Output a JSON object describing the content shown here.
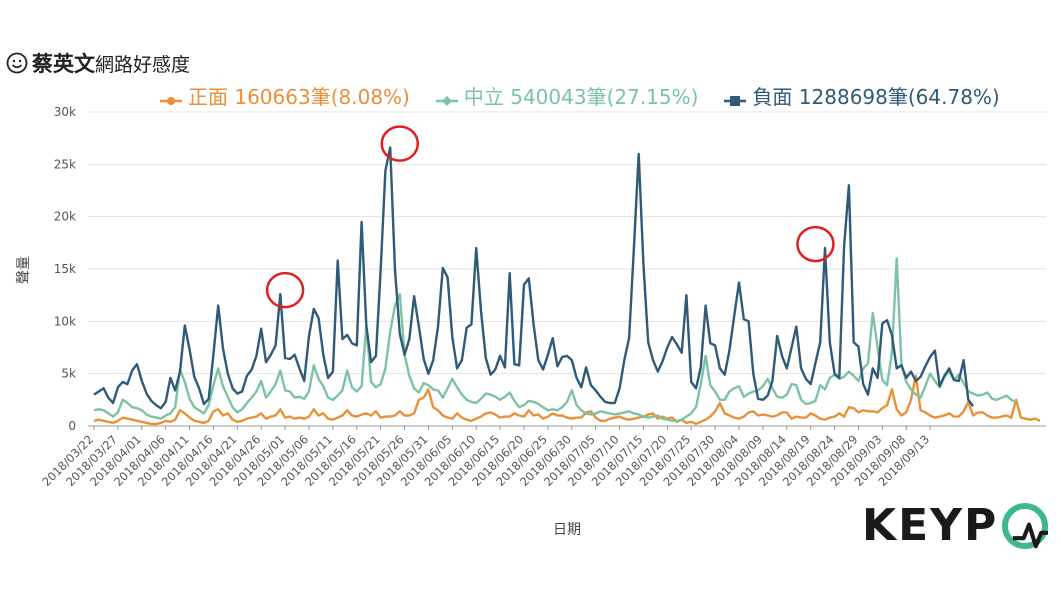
{
  "title": {
    "name": "蔡英文",
    "rest": "網路好感度"
  },
  "legend": [
    {
      "label": "正面 160663筆(8.08%)",
      "color": "#e8913a"
    },
    {
      "label": "中立 540043筆(27.15%)",
      "color": "#7cc3a3"
    },
    {
      "label": "負面 1288698筆(64.78%)",
      "color": "#2f5a78"
    }
  ],
  "logo": {
    "text": "KEYP"
  },
  "chart_data": {
    "type": "line",
    "xlabel": "日期",
    "ylabel": "聲量",
    "ylim": [
      0,
      30000
    ],
    "yticks": [
      "0",
      "5k",
      "10k",
      "15k",
      "20k",
      "25k",
      "30k"
    ],
    "x_start": "2018-03-22",
    "x_end": "2018-09-17",
    "xtick_labels": [
      "2018/03/22",
      "2018/03/27",
      "2018/04/01",
      "2018/04/06",
      "2018/04/11",
      "2018/04/16",
      "2018/04/21",
      "2018/04/26",
      "2018/05/01",
      "2018/05/06",
      "2018/05/11",
      "2018/05/16",
      "2018/05/21",
      "2018/05/26",
      "2018/05/31",
      "2018/06/05",
      "2018/06/10",
      "2018/06/15",
      "2018/06/20",
      "2018/06/25",
      "2018/06/30",
      "2018/07/05",
      "2018/07/10",
      "2018/07/15",
      "2018/07/20",
      "2018/07/25",
      "2018/07/30",
      "2018/08/04",
      "2018/08/09",
      "2018/08/14",
      "2018/08/19",
      "2018/08/24",
      "2018/08/29",
      "2018/09/03",
      "2018/09/08",
      "2018/09/13"
    ],
    "grid": true,
    "legend_position": "top",
    "series": [
      {
        "name": "正面",
        "color": "#e8913a",
        "values": [
          500,
          600,
          500,
          400,
          300,
          500,
          800,
          700,
          600,
          500,
          400,
          300,
          200,
          200,
          300,
          500,
          400,
          600,
          1500,
          1200,
          800,
          500,
          400,
          300,
          500,
          1400,
          1600,
          1000,
          1200,
          600,
          400,
          500,
          700,
          800,
          900,
          1200,
          700,
          900,
          1000,
          1600,
          800,
          900,
          700,
          800,
          700,
          900,
          1600,
          1000,
          1200,
          700,
          600,
          800,
          1000,
          1500,
          1000,
          900,
          1100,
          1200,
          1000,
          1400,
          800,
          900,
          900,
          1000,
          1400,
          1000,
          1000,
          1200,
          2500,
          2700,
          3500,
          1800,
          1500,
          1000,
          800,
          700,
          1200,
          800,
          600,
          500,
          700,
          900,
          1200,
          1300,
          1100,
          800,
          900,
          900,
          1200,
          1000,
          900,
          1500,
          1000,
          1100,
          700,
          900,
          1200,
          1000,
          1000,
          800,
          700,
          800,
          800,
          1300,
          1400,
          800,
          500,
          500,
          700,
          800,
          900,
          700,
          600,
          700,
          800,
          900,
          1100,
          1200,
          700,
          900,
          700,
          800,
          400,
          600,
          300,
          400,
          200,
          400,
          600,
          900,
          1400,
          2200,
          1200,
          1000,
          800,
          700,
          900,
          1300,
          1400,
          1000,
          1100,
          1000,
          900,
          1000,
          1300,
          1300,
          700,
          900,
          800,
          800,
          1200,
          1000,
          700,
          600,
          800,
          900,
          1200,
          900,
          1800,
          1700,
          1300,
          1500,
          1400,
          1400,
          1300,
          1700,
          2000,
          3500,
          1600,
          1000,
          1300,
          2500,
          4800,
          1500,
          1300,
          1000,
          800,
          900,
          1000,
          1200,
          900,
          900,
          1400,
          2300,
          1000,
          1300,
          1300,
          1000,
          800,
          800,
          900,
          1000,
          800,
          2500,
          800,
          700,
          600,
          700,
          500
        ]
      },
      {
        "name": "中立",
        "color": "#7cc3a3",
        "values": [
          1500,
          1600,
          1500,
          1200,
          900,
          1300,
          2500,
          2200,
          1800,
          1700,
          1500,
          1100,
          900,
          800,
          700,
          1000,
          1200,
          1800,
          5400,
          4200,
          2600,
          1800,
          1500,
          1200,
          2000,
          3900,
          5500,
          3800,
          2800,
          1800,
          1300,
          1600,
          2200,
          2700,
          3300,
          4300,
          2700,
          3300,
          4000,
          5300,
          3400,
          3300,
          2700,
          2800,
          2600,
          3300,
          5800,
          4500,
          3800,
          2700,
          2500,
          2900,
          3400,
          5300,
          3700,
          3300,
          3800,
          9600,
          4200,
          3700,
          4000,
          5500,
          9000,
          11500,
          12600,
          6800,
          4800,
          3600,
          3200,
          4100,
          3900,
          3500,
          3400,
          2700,
          3600,
          4500,
          3700,
          3000,
          2500,
          2300,
          2200,
          2600,
          3100,
          3000,
          2800,
          2500,
          2800,
          3200,
          2400,
          1800,
          2000,
          2400,
          2300,
          2100,
          1800,
          1500,
          1600,
          1500,
          1800,
          2300,
          3400,
          2000,
          1500,
          1200,
          1100,
          1200,
          1400,
          1300,
          1200,
          1100,
          1200,
          1300,
          1400,
          1200,
          1100,
          900,
          800,
          900,
          1000,
          700,
          600,
          500,
          500,
          600,
          900,
          1200,
          1800,
          4000,
          6700,
          3900,
          3300,
          2500,
          2500,
          3300,
          3600,
          3800,
          2800,
          3100,
          3300,
          3400,
          3800,
          4500,
          3600,
          2800,
          2700,
          3000,
          4000,
          3900,
          2500,
          2100,
          2200,
          2400,
          3900,
          3500,
          4600,
          4900,
          4500,
          4700,
          5200,
          4800,
          4300,
          5500,
          6000,
          10800,
          7500,
          4400,
          3900,
          7000,
          16000,
          6000,
          4200,
          3500,
          3000,
          2700,
          3800,
          5000,
          4300,
          3700,
          4700,
          5200,
          4400,
          4900,
          4100,
          3300,
          3100,
          2900,
          3000,
          3200,
          2600,
          2500,
          2700,
          2900,
          2500,
          2300
        ]
      },
      {
        "name": "負面",
        "color": "#2f5a78",
        "values": [
          3000,
          3300,
          3600,
          2700,
          2200,
          3700,
          4200,
          4000,
          5300,
          5900,
          4300,
          3100,
          2400,
          2000,
          1700,
          2300,
          4600,
          3400,
          5200,
          9600,
          7300,
          4700,
          3600,
          2100,
          2600,
          6800,
          11500,
          7400,
          5000,
          3600,
          3100,
          3300,
          4800,
          5400,
          6700,
          9300,
          6100,
          6800,
          7700,
          12600,
          6500,
          6400,
          6800,
          5500,
          4300,
          8600,
          11200,
          10300,
          6800,
          4600,
          5200,
          15800,
          8300,
          8700,
          7900,
          7700,
          19500,
          9600,
          6100,
          6700,
          15000,
          24400,
          26600,
          14900,
          8800,
          6800,
          8300,
          12400,
          9500,
          6400,
          5000,
          6300,
          9500,
          15100,
          14200,
          8500,
          5500,
          6300,
          9400,
          9700,
          17000,
          11000,
          6500,
          4900,
          5400,
          6700,
          5600,
          14600,
          5900,
          5800,
          13500,
          14100,
          9700,
          6300,
          5400,
          6800,
          8400,
          5700,
          6600,
          6700,
          6300,
          4600,
          3700,
          5600,
          3900,
          3400,
          2800,
          2300,
          2200,
          2200,
          3600,
          6300,
          8400,
          17000,
          26000,
          15500,
          8000,
          6300,
          5200,
          6200,
          7500,
          8500,
          7800,
          7000,
          12500,
          4200,
          3600,
          5600,
          11500,
          7900,
          7700,
          5500,
          4900,
          7200,
          10500,
          13700,
          10200,
          10000,
          5000,
          2600,
          2500,
          2900,
          4300,
          8600,
          6700,
          5500,
          7500,
          9500,
          5500,
          4500,
          4000,
          6000,
          8000,
          17000,
          8000,
          5000,
          4600,
          17200,
          23000,
          8000,
          7600,
          4000,
          3000,
          5500,
          4600,
          9800,
          10100,
          8700,
          5500,
          5800,
          4600,
          5200,
          4300,
          4700,
          5700,
          6600,
          7200,
          3800,
          4800,
          5500,
          4400,
          4300,
          6300,
          2500,
          1900
        ]
      }
    ],
    "annotations": [
      {
        "type": "circle",
        "x": "2018/05/01",
        "y": 12600
      },
      {
        "type": "circle",
        "x": "2018/05/25",
        "y": 26600
      },
      {
        "type": "circle",
        "x": "2018/08/20",
        "y": 17000
      }
    ]
  }
}
